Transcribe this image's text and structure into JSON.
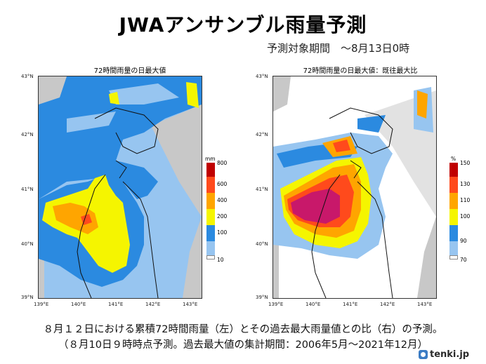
{
  "title": "JWAアンサンブル雨量予測",
  "subtitle": "予測対象期間　～8月13日0時",
  "left_panel": {
    "title": "72時間雨量の日最大値",
    "unit": "mm",
    "colorbar_ticks": [
      "800",
      "600",
      "400",
      "200",
      "100",
      "10"
    ],
    "colorbar_colors": [
      "#c00000",
      "#ff4a1c",
      "#ffa500",
      "#f5f500",
      "#2b8ae0",
      "#97c5f0",
      "#ffffff"
    ]
  },
  "right_panel": {
    "title": "72時間雨量の日最大値：既往最大比",
    "unit": "%",
    "colorbar_ticks": [
      "150",
      "130",
      "110",
      "100",
      "90",
      "70"
    ],
    "colorbar_colors": [
      "#c00000",
      "#ff4a1c",
      "#ffa500",
      "#f5f500",
      "#2b8ae0",
      "#97c5f0",
      "#ffffff"
    ]
  },
  "map_axes": {
    "lat_labels": [
      "43°N",
      "42°N",
      "41°N",
      "40°N",
      "39°N"
    ],
    "lon_labels": [
      "139°E",
      "140°E",
      "141°E",
      "142°E",
      "143°E"
    ]
  },
  "caption_line1": "８月１２日における累積72時間雨量（左）とその過去最大雨量値との比（右）の予測。",
  "caption_line2": "（８月10日９時時点予測。過去最大値の集計期間：2006年5月～2021年12月）",
  "logo_text": "tenki.jp",
  "colors": {
    "land_gray": "#c8c8c8",
    "sea_white": "#ffffff",
    "light_blue": "#97c5f0",
    "blue": "#2b8ae0",
    "yellow": "#f5f500",
    "orange": "#ffa500",
    "red_orange": "#ff4a1c",
    "red": "#c00000",
    "magenta": "#c8186a"
  }
}
